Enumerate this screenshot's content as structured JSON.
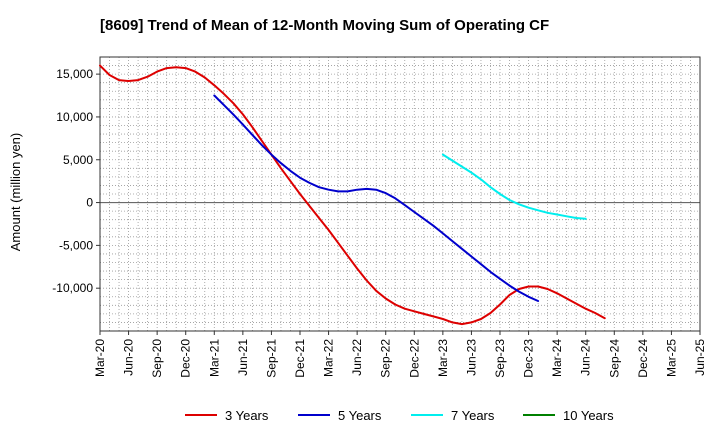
{
  "chart_data": {
    "type": "line",
    "title": "[8609]  Trend of Mean of 12-Month Moving Sum of Operating CF",
    "xlabel": "",
    "ylabel": "Amount (million yen)",
    "ylim": [
      -15000,
      17000
    ],
    "y_ticks": [
      15000,
      10000,
      5000,
      0,
      -5000,
      -10000
    ],
    "y_tick_labels": [
      "15,000",
      "10,000",
      "5,000",
      "0",
      "-5,000",
      "-10,000"
    ],
    "x_range": [
      "Mar-20",
      "Jun-25"
    ],
    "x_tick_labels": [
      "Mar-20",
      "Jun-20",
      "Sep-20",
      "Dec-20",
      "Mar-21",
      "Jun-21",
      "Sep-21",
      "Dec-21",
      "Mar-22",
      "Jun-22",
      "Sep-22",
      "Dec-22",
      "Mar-23",
      "Jun-23",
      "Sep-23",
      "Dec-23",
      "Mar-24",
      "Jun-24",
      "Sep-24",
      "Dec-24",
      "Mar-25",
      "Jun-25"
    ],
    "grid": true,
    "legend_position": "bottom",
    "series": [
      {
        "name": "3 Years",
        "color": "#dd0000",
        "points": [
          [
            "Mar-20",
            16000
          ],
          [
            "Apr-20",
            14900
          ],
          [
            "May-20",
            14300
          ],
          [
            "Jun-20",
            14200
          ],
          [
            "Jul-20",
            14300
          ],
          [
            "Aug-20",
            14700
          ],
          [
            "Sep-20",
            15300
          ],
          [
            "Oct-20",
            15700
          ],
          [
            "Nov-20",
            15800
          ],
          [
            "Dec-20",
            15700
          ],
          [
            "Jan-21",
            15300
          ],
          [
            "Feb-21",
            14600
          ],
          [
            "Mar-21",
            13700
          ],
          [
            "Apr-21",
            12700
          ],
          [
            "May-21",
            11600
          ],
          [
            "Jun-21",
            10300
          ],
          [
            "Jul-21",
            8800
          ],
          [
            "Aug-21",
            7200
          ],
          [
            "Sep-21",
            5600
          ],
          [
            "Oct-21",
            4000
          ],
          [
            "Nov-21",
            2500
          ],
          [
            "Dec-21",
            1000
          ],
          [
            "Jan-22",
            -400
          ],
          [
            "Feb-22",
            -1800
          ],
          [
            "Mar-22",
            -3200
          ],
          [
            "Apr-22",
            -4700
          ],
          [
            "May-22",
            -6200
          ],
          [
            "Jun-22",
            -7700
          ],
          [
            "Jul-22",
            -9100
          ],
          [
            "Aug-22",
            -10300
          ],
          [
            "Sep-22",
            -11200
          ],
          [
            "Oct-22",
            -11900
          ],
          [
            "Nov-22",
            -12400
          ],
          [
            "Dec-22",
            -12700
          ],
          [
            "Jan-23",
            -13000
          ],
          [
            "Feb-23",
            -13300
          ],
          [
            "Mar-23",
            -13600
          ],
          [
            "Apr-23",
            -14000
          ],
          [
            "May-23",
            -14200
          ],
          [
            "Jun-23",
            -14000
          ],
          [
            "Jul-23",
            -13600
          ],
          [
            "Aug-23",
            -12900
          ],
          [
            "Sep-23",
            -11900
          ],
          [
            "Oct-23",
            -10800
          ],
          [
            "Nov-23",
            -10100
          ],
          [
            "Dec-23",
            -9800
          ],
          [
            "Jan-24",
            -9800
          ],
          [
            "Feb-24",
            -10100
          ],
          [
            "Mar-24",
            -10600
          ],
          [
            "Apr-24",
            -11200
          ],
          [
            "May-24",
            -11800
          ],
          [
            "Jun-24",
            -12400
          ],
          [
            "Jul-24",
            -12900
          ],
          [
            "Aug-24",
            -13500
          ]
        ]
      },
      {
        "name": "5 Years",
        "color": "#0000cc",
        "points": [
          [
            "Mar-21",
            12500
          ],
          [
            "Apr-21",
            11400
          ],
          [
            "May-21",
            10300
          ],
          [
            "Jun-21",
            9100
          ],
          [
            "Jul-21",
            7900
          ],
          [
            "Aug-21",
            6700
          ],
          [
            "Sep-21",
            5600
          ],
          [
            "Oct-21",
            4600
          ],
          [
            "Nov-21",
            3700
          ],
          [
            "Dec-21",
            2900
          ],
          [
            "Jan-22",
            2300
          ],
          [
            "Feb-22",
            1800
          ],
          [
            "Mar-22",
            1500
          ],
          [
            "Apr-22",
            1300
          ],
          [
            "May-22",
            1300
          ],
          [
            "Jun-22",
            1500
          ],
          [
            "Jul-22",
            1600
          ],
          [
            "Aug-22",
            1500
          ],
          [
            "Sep-22",
            1100
          ],
          [
            "Oct-22",
            500
          ],
          [
            "Nov-22",
            -300
          ],
          [
            "Dec-22",
            -1100
          ],
          [
            "Jan-23",
            -1900
          ],
          [
            "Feb-23",
            -2700
          ],
          [
            "Mar-23",
            -3600
          ],
          [
            "Apr-23",
            -4500
          ],
          [
            "May-23",
            -5400
          ],
          [
            "Jun-23",
            -6300
          ],
          [
            "Jul-23",
            -7200
          ],
          [
            "Aug-23",
            -8100
          ],
          [
            "Sep-23",
            -8900
          ],
          [
            "Oct-23",
            -9700
          ],
          [
            "Nov-23",
            -10400
          ],
          [
            "Dec-23",
            -11000
          ],
          [
            "Jan-24",
            -11500
          ]
        ]
      },
      {
        "name": "7 Years",
        "color": "#00eeee",
        "points": [
          [
            "Mar-23",
            5600
          ],
          [
            "Apr-23",
            4900
          ],
          [
            "May-23",
            4200
          ],
          [
            "Jun-23",
            3500
          ],
          [
            "Jul-23",
            2700
          ],
          [
            "Aug-23",
            1800
          ],
          [
            "Sep-23",
            1000
          ],
          [
            "Oct-23",
            300
          ],
          [
            "Nov-23",
            -200
          ],
          [
            "Dec-23",
            -600
          ],
          [
            "Jan-24",
            -900
          ],
          [
            "Feb-24",
            -1200
          ],
          [
            "Mar-24",
            -1400
          ],
          [
            "Apr-24",
            -1600
          ],
          [
            "May-24",
            -1800
          ],
          [
            "Jun-24",
            -1900
          ]
        ]
      },
      {
        "name": "10 Years",
        "color": "#008000",
        "points": []
      }
    ]
  }
}
